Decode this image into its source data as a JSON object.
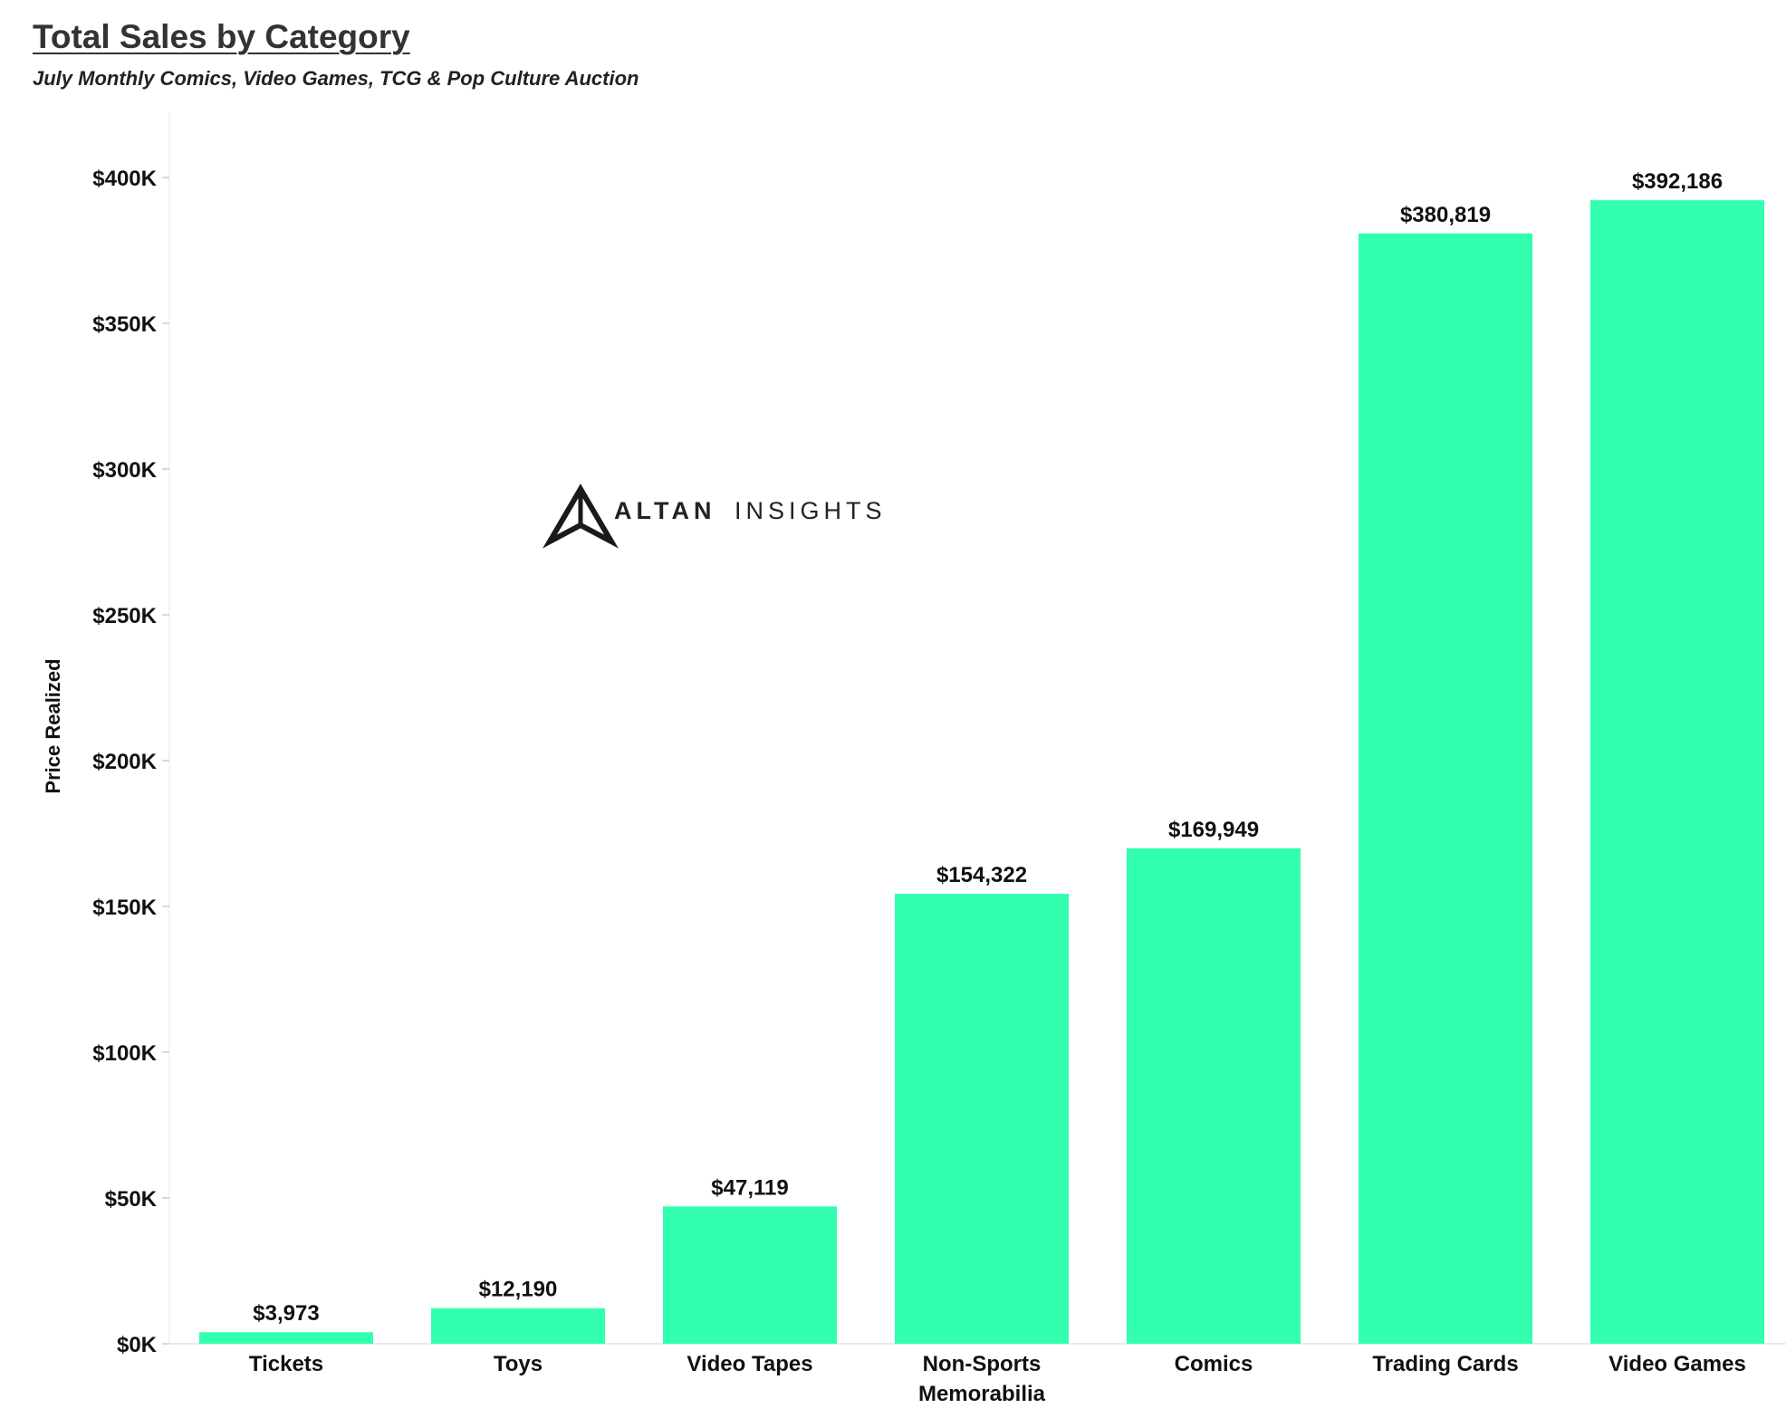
{
  "chart_data": {
    "type": "bar",
    "title": "Total Sales by Category",
    "subtitle": "July Monthly Comics, Video Games, TCG & Pop Culture Auction",
    "xlabel": "",
    "ylabel": "Price Realized",
    "ylim": [
      0,
      420000
    ],
    "yticks": [
      0,
      50000,
      100000,
      150000,
      200000,
      250000,
      300000,
      350000,
      400000
    ],
    "ytick_labels": [
      "$0K",
      "$50K",
      "$100K",
      "$150K",
      "$200K",
      "$250K",
      "$300K",
      "$350K",
      "$400K"
    ],
    "categories": [
      "Tickets",
      "Toys",
      "Video Tapes",
      "Non-Sports Memorabilia",
      "Comics",
      "Trading Cards",
      "Video Games"
    ],
    "category_lines": [
      [
        "Tickets"
      ],
      [
        "Toys"
      ],
      [
        "Video Tapes"
      ],
      [
        "Non-Sports",
        "Memorabilia"
      ],
      [
        "Comics"
      ],
      [
        "Trading Cards"
      ],
      [
        "Video Games"
      ]
    ],
    "values": [
      3973,
      12190,
      47119,
      154322,
      169949,
      380819,
      392186
    ],
    "value_labels": [
      "$3,973",
      "$12,190",
      "$47,119",
      "$154,322",
      "$169,949",
      "$380,819",
      "$392,186"
    ],
    "bar_color": "#33ffb0",
    "grid": false,
    "legend": "none"
  },
  "watermark": {
    "text_bold": "ALTAN",
    "text_light": "INSIGHTS",
    "icon": "altan-logo-icon"
  }
}
